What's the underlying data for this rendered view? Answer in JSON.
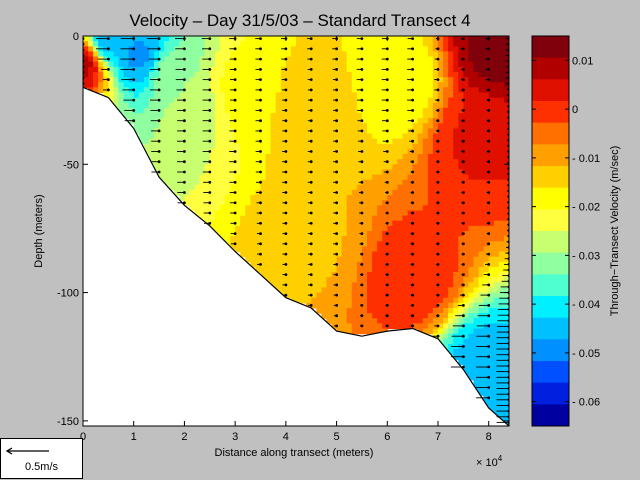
{
  "chart_data": {
    "type": "contour",
    "title": "Velocity – Day 31/5/03 – Standard Transect 4",
    "xlabel": "Distance along transect (meters)",
    "ylabel": "Depth (meters)",
    "x_multiplier_label": "× 10",
    "x_multiplier_exp": "4",
    "xlim": [
      0,
      8.4
    ],
    "ylim": [
      -152,
      0
    ],
    "x_ticks": [
      0,
      1,
      2,
      3,
      4,
      5,
      6,
      7,
      8
    ],
    "x_tick_labels": [
      "0",
      "1",
      "2",
      "3",
      "4",
      "5",
      "6",
      "7",
      "8"
    ],
    "y_ticks": [
      0,
      -50,
      -100,
      -150
    ],
    "y_tick_labels": [
      "0",
      "-50",
      "-100",
      "-150"
    ],
    "bottom_profile": [
      [
        0,
        -20
      ],
      [
        0.5,
        -24
      ],
      [
        1,
        -36
      ],
      [
        1.5,
        -55
      ],
      [
        2,
        -66
      ],
      [
        2.5,
        -74
      ],
      [
        3,
        -84
      ],
      [
        3.5,
        -93
      ],
      [
        4,
        -102
      ],
      [
        4.5,
        -106
      ],
      [
        5,
        -115
      ],
      [
        5.5,
        -117
      ],
      [
        6,
        -115
      ],
      [
        6.5,
        -114
      ],
      [
        7,
        -118
      ],
      [
        7.5,
        -130
      ],
      [
        8,
        -145
      ],
      [
        8.4,
        -152
      ]
    ],
    "colorbar": {
      "label": "Through−Transect Velocity (m/sec)",
      "range": [
        -0.065,
        0.015
      ],
      "ticks": [
        0.01,
        0,
        -0.01,
        -0.02,
        -0.03,
        -0.04,
        -0.05,
        -0.06
      ],
      "tick_labels": [
        "0.01",
        "0",
        "- 0.01",
        "- 0.02",
        "- 0.03",
        "- 0.04",
        "- 0.05",
        "- 0.06"
      ],
      "colors": [
        "#80000b",
        "#b00000",
        "#e01000",
        "#ff3000",
        "#ff7000",
        "#ffa000",
        "#ffd000",
        "#ffff00",
        "#ffff3f",
        "#c8ff70",
        "#90ffa0",
        "#50ffd0",
        "#00f0ff",
        "#00c0ff",
        "#0090ff",
        "#0050ff",
        "#0020e0",
        "#0000a0"
      ]
    },
    "velocity_fields": [
      {
        "x": 0.45,
        "y": -3,
        "value": -0.045
      },
      {
        "x": 1.1,
        "y": -8,
        "value": -0.048
      },
      {
        "x": 1.7,
        "y": -15,
        "value": -0.032
      },
      {
        "x": 2.2,
        "y": -28,
        "value": -0.026
      },
      {
        "x": 3.2,
        "y": -22,
        "value": -0.018
      },
      {
        "x": 4.5,
        "y": -30,
        "value": -0.012
      },
      {
        "x": 6.2,
        "y": -18,
        "value": -0.02
      },
      {
        "x": 6.5,
        "y": -95,
        "value": 0.0
      },
      {
        "x": 7.8,
        "y": -40,
        "value": 0.002
      },
      {
        "x": 8.2,
        "y": -5,
        "value": 0.012
      },
      {
        "x": 7.9,
        "y": -130,
        "value": -0.045
      },
      {
        "x": 4.5,
        "y": -80,
        "value": -0.012
      },
      {
        "x": 0.05,
        "y": -10,
        "value": 0.008
      }
    ],
    "arrow_columns_x": [
      0,
      0.5,
      1,
      1.5,
      2,
      2.5,
      3,
      3.5,
      4,
      4.5,
      5,
      5.5,
      6,
      6.5,
      7,
      7.5,
      8,
      8.4
    ],
    "scale_label": "0.5m/s"
  }
}
